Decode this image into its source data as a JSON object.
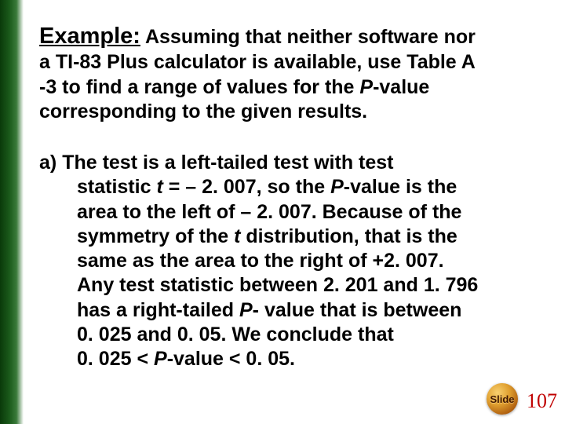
{
  "colors": {
    "text": "#000000",
    "page_number": "#c00000",
    "stripe_dark": "#0a3a0a",
    "stripe_light": "#3a7a3a",
    "badge_highlight": "#f8d070",
    "badge_shadow": "#703000",
    "background": "#ffffff"
  },
  "typography": {
    "heading_fontsize": 25,
    "example_fontsize": 29,
    "body_fontsize": 25,
    "page_num_fontsize": 26,
    "font_family": "Arial",
    "font_weight": "bold"
  },
  "heading": {
    "example_label": "Example:",
    "line1_after": " Assuming that neither software nor",
    "line2": "a TI-83 Plus calculator is available, use Table A",
    "line3_before": "-3 to find a range of values for the ",
    "line3_p": "P",
    "line3_after": "-value",
    "line4": "corresponding to the given results."
  },
  "body": {
    "a_label": "a) ",
    "l1": "The test is a left-tailed test with test",
    "l2_a": "statistic ",
    "l2_t": "t",
    "l2_b": " = – 2. 007, so the ",
    "l2_p": "P",
    "l2_c": "-value is the",
    "l3": "area to the left of – 2. 007.  Because of the",
    "l4_a": "symmetry of  the ",
    "l4_t": "t",
    "l4_b": " distribution, that is the",
    "l5": "same as the area to the right of +2. 007.",
    "l6": "Any test statistic between 2. 201 and 1. 796",
    "l7_a": "has a right-tailed ",
    "l7_p": "P",
    "l7_b": "- value that is between",
    "l8": "0. 025 and 0. 05.  We conclude that",
    "l9_a": "0. 025 < ",
    "l9_p": "P",
    "l9_b": "-value < 0. 05."
  },
  "badge": {
    "label": "Slide"
  },
  "page_number": "107"
}
